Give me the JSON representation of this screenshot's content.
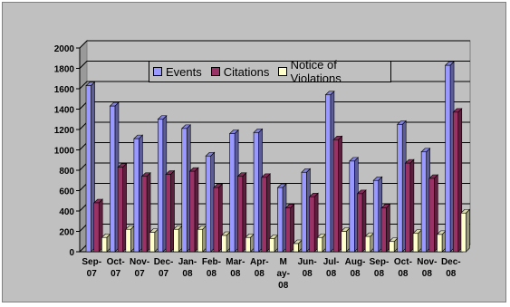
{
  "chart_data": {
    "type": "bar",
    "categories": [
      "Sep-07",
      "Oct-07",
      "Nov-07",
      "Dec-07",
      "Jan-08",
      "Feb-08",
      "Mar-08",
      "Apr-08",
      "May-08",
      "Jun-08",
      "Jul-08",
      "Aug-08",
      "Sep-08",
      "Oct-08",
      "Nov-08",
      "Dec-08"
    ],
    "category_label_lines": [
      [
        "Sep-",
        "07"
      ],
      [
        "Oct-",
        "07"
      ],
      [
        "Nov-",
        "07"
      ],
      [
        "Dec-",
        "07"
      ],
      [
        "Jan-",
        "08"
      ],
      [
        "Feb-",
        "08"
      ],
      [
        "Mar-",
        "08"
      ],
      [
        "Apr-",
        "08"
      ],
      [
        "M",
        "ay-",
        "08"
      ],
      [
        "Jun-",
        "08"
      ],
      [
        "Jul-",
        "08"
      ],
      [
        "Aug-",
        "08"
      ],
      [
        "Sep-",
        "08"
      ],
      [
        "Oct-",
        "08"
      ],
      [
        "Nov-",
        "08"
      ],
      [
        "Dec-",
        "08"
      ]
    ],
    "series": [
      {
        "name": "Events",
        "color": "#9999ff",
        "values": [
          1630,
          1430,
          1110,
          1300,
          1210,
          940,
          1160,
          1170,
          630,
          780,
          1540,
          890,
          700,
          1250,
          980,
          1830
        ]
      },
      {
        "name": "Citations",
        "color": "#993366",
        "values": [
          480,
          830,
          740,
          760,
          790,
          630,
          740,
          730,
          430,
          540,
          1100,
          570,
          430,
          870,
          720,
          1370
        ]
      },
      {
        "name": "Notice of Violations",
        "color": "#ffffcc",
        "values": [
          140,
          220,
          190,
          220,
          220,
          160,
          140,
          130,
          80,
          140,
          200,
          150,
          100,
          180,
          170,
          380
        ]
      }
    ],
    "ylim": [
      0,
      2000
    ],
    "yticks": [
      "0",
      "200",
      "400",
      "600",
      "800",
      "1000",
      "1200",
      "1400",
      "1600",
      "1800",
      "2000"
    ],
    "grid": true,
    "legend": "top"
  }
}
